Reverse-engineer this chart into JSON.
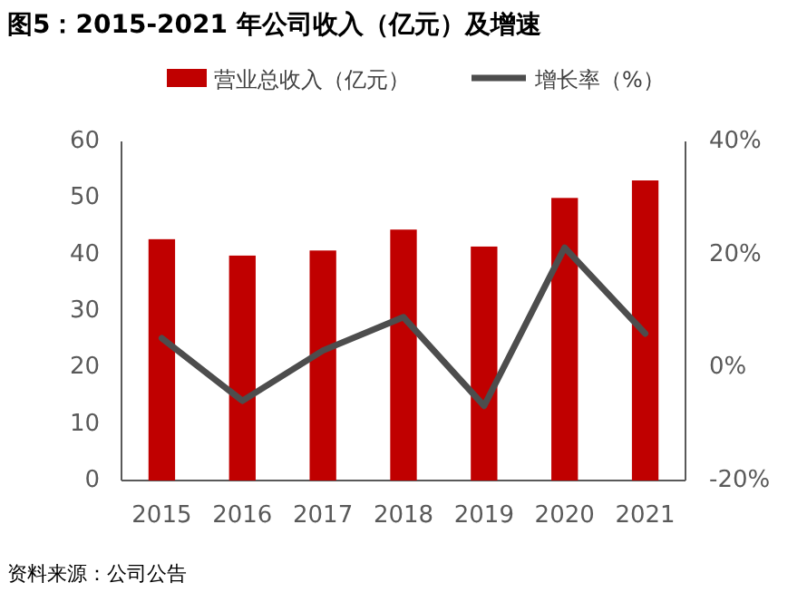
{
  "chart_data": {
    "type": "bar",
    "title": "图5：2015-2021 年公司收入（亿元）及增速",
    "categories": [
      "2015",
      "2016",
      "2017",
      "2018",
      "2019",
      "2020",
      "2021"
    ],
    "series": [
      {
        "name": "营业总收入（亿元）",
        "color": "#c00000",
        "values": [
          42.7,
          39.8,
          40.7,
          44.4,
          41.4,
          50.0,
          53.1
        ]
      },
      {
        "name": "增长率（%）",
        "type": "line",
        "axis": "y2",
        "color": "#4d4d4d",
        "values": [
          5.2,
          -5.9,
          3.0,
          8.9,
          -6.8,
          21.2,
          6.0
        ]
      }
    ],
    "ylim": [
      0,
      60
    ],
    "yticks": [
      0,
      10,
      20,
      30,
      40,
      50,
      60
    ],
    "y2lim": [
      -20,
      40
    ],
    "y2ticks": [
      {
        "value": -20,
        "label": "-20%"
      },
      {
        "value": 0,
        "label": "0%"
      },
      {
        "value": 20,
        "label": "20%"
      },
      {
        "value": 40,
        "label": "40%"
      }
    ],
    "legend": "top",
    "grid": false,
    "marker": "none",
    "line_style": "solid",
    "annotations": [
      "资料来源：公司公告"
    ]
  }
}
